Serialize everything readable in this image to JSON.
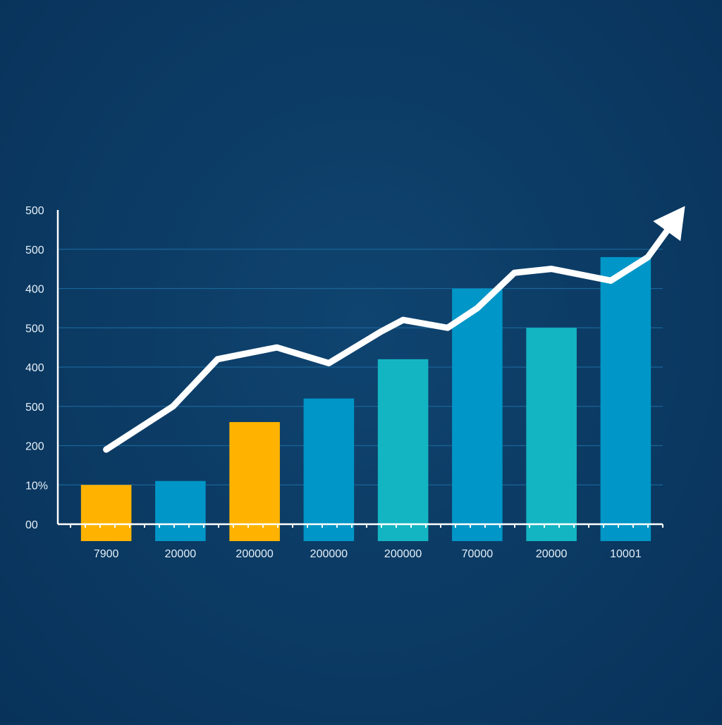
{
  "chart_data": {
    "type": "bar",
    "categories": [
      "7900",
      "20000",
      "200000",
      "200000",
      "200000",
      "70000",
      "20000",
      "10001"
    ],
    "y_tick_labels": [
      "00",
      "10%",
      "200",
      "500",
      "400",
      "500",
      "400",
      "500",
      "500"
    ],
    "ylim": [
      0,
      8
    ],
    "series": [
      {
        "values": [
          1.0,
          1.1,
          2.6,
          3.2,
          4.2,
          6.0,
          5.0,
          6.8
        ],
        "colors": [
          "#ffb300",
          "#0096c7",
          "#ffb300",
          "#0096c7",
          "#13b5c2",
          "#0096c7",
          "#13b5c2",
          "#0096c7"
        ]
      },
      {
        "type": "line",
        "color": "#ffffff",
        "points": [
          [
            0.0,
            1.9
          ],
          [
            0.9,
            3.0
          ],
          [
            1.5,
            4.2
          ],
          [
            2.3,
            4.5
          ],
          [
            3.0,
            4.1
          ],
          [
            3.7,
            4.9
          ],
          [
            4.0,
            5.2
          ],
          [
            4.6,
            5.0
          ],
          [
            5.0,
            5.5
          ],
          [
            5.5,
            6.4
          ],
          [
            6.0,
            6.5
          ],
          [
            6.8,
            6.2
          ],
          [
            7.3,
            6.8
          ],
          [
            7.8,
            8.1
          ]
        ],
        "arrow_at_end": true
      }
    ],
    "grid": true,
    "grid_color": "#1b6497",
    "axis_color": "#ffffff"
  }
}
